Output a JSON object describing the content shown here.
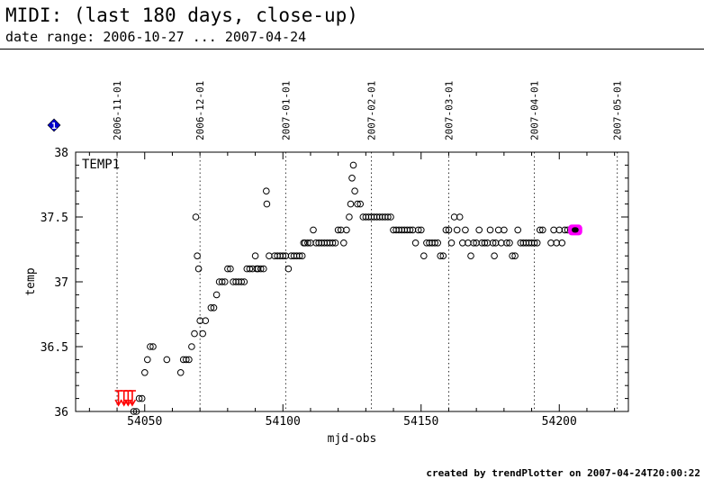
{
  "header": {
    "title": "MIDI: (last 180 days, close-up)",
    "subtitle": "date range: 2006-10-27 ... 2007-04-24"
  },
  "footer": {
    "text": "created by trendPlotter on 2007-04-24T20:00:22"
  },
  "colors": {
    "marker": "#000000",
    "highlight": "#ff00ff",
    "arrow": "#ff0000",
    "badge": "#0000cc"
  },
  "badge": {
    "icon": "info-diamond-icon",
    "label": "1"
  },
  "chart_data": {
    "type": "scatter",
    "xlabel": "mjd-obs",
    "ylabel": "temp",
    "panel_label": "TEMP1",
    "xlim": [
      54025,
      54225
    ],
    "ylim": [
      36,
      38
    ],
    "xticks": [
      54050,
      54100,
      54150,
      54200
    ],
    "yticks": [
      36,
      36.5,
      37,
      37.5,
      38
    ],
    "grid": "vertical dotted at month starts",
    "date_markers": [
      {
        "mjd": 54040,
        "label": "2006-11-01"
      },
      {
        "mjd": 54070,
        "label": "2006-12-01"
      },
      {
        "mjd": 54101,
        "label": "2007-01-01"
      },
      {
        "mjd": 54132,
        "label": "2007-02-01"
      },
      {
        "mjd": 54160,
        "label": "2007-03-01"
      },
      {
        "mjd": 54191,
        "label": "2007-04-01"
      },
      {
        "mjd": 54221,
        "label": "2007-05-01"
      }
    ],
    "out_of_range_below_x": [
      54040.5,
      54042.5,
      54044,
      54045.5
    ],
    "highlight_x": [
      54204.5,
      54207
    ],
    "highlight_y": 37.4,
    "points": [
      [
        54046,
        36.0
      ],
      [
        54047,
        36.0
      ],
      [
        54048,
        36.1
      ],
      [
        54049,
        36.1
      ],
      [
        54050,
        36.3
      ],
      [
        54051,
        36.4
      ],
      [
        54052,
        36.5
      ],
      [
        54053,
        36.5
      ],
      [
        54058,
        36.4
      ],
      [
        54063,
        36.3
      ],
      [
        54064,
        36.4
      ],
      [
        54065,
        36.4
      ],
      [
        54066,
        36.4
      ],
      [
        54067,
        36.5
      ],
      [
        54068,
        36.6
      ],
      [
        54068.5,
        37.5
      ],
      [
        54069,
        37.2
      ],
      [
        54069.5,
        37.1
      ],
      [
        54070,
        36.7
      ],
      [
        54071,
        36.6
      ],
      [
        54072,
        36.7
      ],
      [
        54074,
        36.8
      ],
      [
        54075,
        36.8
      ],
      [
        54076,
        36.9
      ],
      [
        54077,
        37.0
      ],
      [
        54078,
        37.0
      ],
      [
        54079,
        37.0
      ],
      [
        54080,
        37.1
      ],
      [
        54081,
        37.1
      ],
      [
        54082,
        37.0
      ],
      [
        54083,
        37.0
      ],
      [
        54084,
        37.0
      ],
      [
        54085,
        37.0
      ],
      [
        54086,
        37.0
      ],
      [
        54087,
        37.1
      ],
      [
        54088,
        37.1
      ],
      [
        54089,
        37.1
      ],
      [
        54090,
        37.2
      ],
      [
        54090.5,
        37.1
      ],
      [
        54091,
        37.1
      ],
      [
        54092,
        37.1
      ],
      [
        54093,
        37.1
      ],
      [
        54094,
        37.7
      ],
      [
        54094.2,
        37.6
      ],
      [
        54095,
        37.2
      ],
      [
        54097,
        37.2
      ],
      [
        54098,
        37.2
      ],
      [
        54099,
        37.2
      ],
      [
        54100,
        37.2
      ],
      [
        54101,
        37.2
      ],
      [
        54102,
        37.1
      ],
      [
        54103,
        37.2
      ],
      [
        54104,
        37.2
      ],
      [
        54105,
        37.2
      ],
      [
        54106,
        37.2
      ],
      [
        54107,
        37.2
      ],
      [
        54107.5,
        37.3
      ],
      [
        54108,
        37.3
      ],
      [
        54109,
        37.3
      ],
      [
        54110,
        37.3
      ],
      [
        54111,
        37.4
      ],
      [
        54112,
        37.3
      ],
      [
        54113,
        37.3
      ],
      [
        54114,
        37.3
      ],
      [
        54115,
        37.3
      ],
      [
        54116,
        37.3
      ],
      [
        54117,
        37.3
      ],
      [
        54118,
        37.3
      ],
      [
        54119,
        37.3
      ],
      [
        54120,
        37.4
      ],
      [
        54121,
        37.4
      ],
      [
        54122,
        37.3
      ],
      [
        54123,
        37.4
      ],
      [
        54124,
        37.5
      ],
      [
        54124.5,
        37.6
      ],
      [
        54125,
        37.8
      ],
      [
        54125.5,
        37.9
      ],
      [
        54126,
        37.7
      ],
      [
        54127,
        37.6
      ],
      [
        54128,
        37.6
      ],
      [
        54129,
        37.5
      ],
      [
        54130,
        37.5
      ],
      [
        54131,
        37.5
      ],
      [
        54132,
        37.5
      ],
      [
        54133,
        37.5
      ],
      [
        54134,
        37.5
      ],
      [
        54135,
        37.5
      ],
      [
        54136,
        37.5
      ],
      [
        54137,
        37.5
      ],
      [
        54138,
        37.5
      ],
      [
        54139,
        37.5
      ],
      [
        54140,
        37.4
      ],
      [
        54141,
        37.4
      ],
      [
        54142,
        37.4
      ],
      [
        54143,
        37.4
      ],
      [
        54144,
        37.4
      ],
      [
        54145,
        37.4
      ],
      [
        54146,
        37.4
      ],
      [
        54147,
        37.4
      ],
      [
        54148,
        37.3
      ],
      [
        54149,
        37.4
      ],
      [
        54150,
        37.4
      ],
      [
        54151,
        37.2
      ],
      [
        54152,
        37.3
      ],
      [
        54153,
        37.3
      ],
      [
        54154,
        37.3
      ],
      [
        54155,
        37.3
      ],
      [
        54156,
        37.3
      ],
      [
        54157,
        37.2
      ],
      [
        54158,
        37.2
      ],
      [
        54159,
        37.4
      ],
      [
        54160,
        37.4
      ],
      [
        54161,
        37.3
      ],
      [
        54162,
        37.5
      ],
      [
        54163,
        37.4
      ],
      [
        54164,
        37.5
      ],
      [
        54165,
        37.3
      ],
      [
        54166,
        37.4
      ],
      [
        54167,
        37.3
      ],
      [
        54168,
        37.2
      ],
      [
        54169,
        37.3
      ],
      [
        54170,
        37.3
      ],
      [
        54171,
        37.4
      ],
      [
        54172,
        37.3
      ],
      [
        54173,
        37.3
      ],
      [
        54174,
        37.3
      ],
      [
        54175,
        37.4
      ],
      [
        54176,
        37.3
      ],
      [
        54176.5,
        37.2
      ],
      [
        54177,
        37.3
      ],
      [
        54178,
        37.4
      ],
      [
        54179,
        37.3
      ],
      [
        54180,
        37.4
      ],
      [
        54181,
        37.3
      ],
      [
        54182,
        37.3
      ],
      [
        54183,
        37.2
      ],
      [
        54184,
        37.2
      ],
      [
        54185,
        37.4
      ],
      [
        54186,
        37.3
      ],
      [
        54187,
        37.3
      ],
      [
        54188,
        37.3
      ],
      [
        54189,
        37.3
      ],
      [
        54190,
        37.3
      ],
      [
        54191,
        37.3
      ],
      [
        54192,
        37.3
      ],
      [
        54193,
        37.4
      ],
      [
        54194,
        37.4
      ],
      [
        54197,
        37.3
      ],
      [
        54198,
        37.4
      ],
      [
        54199,
        37.3
      ],
      [
        54200,
        37.4
      ],
      [
        54201,
        37.3
      ],
      [
        54202,
        37.4
      ],
      [
        54203,
        37.4
      ],
      [
        54204.5,
        37.4
      ],
      [
        54205.5,
        37.4
      ],
      [
        54206.5,
        37.4
      ]
    ]
  }
}
